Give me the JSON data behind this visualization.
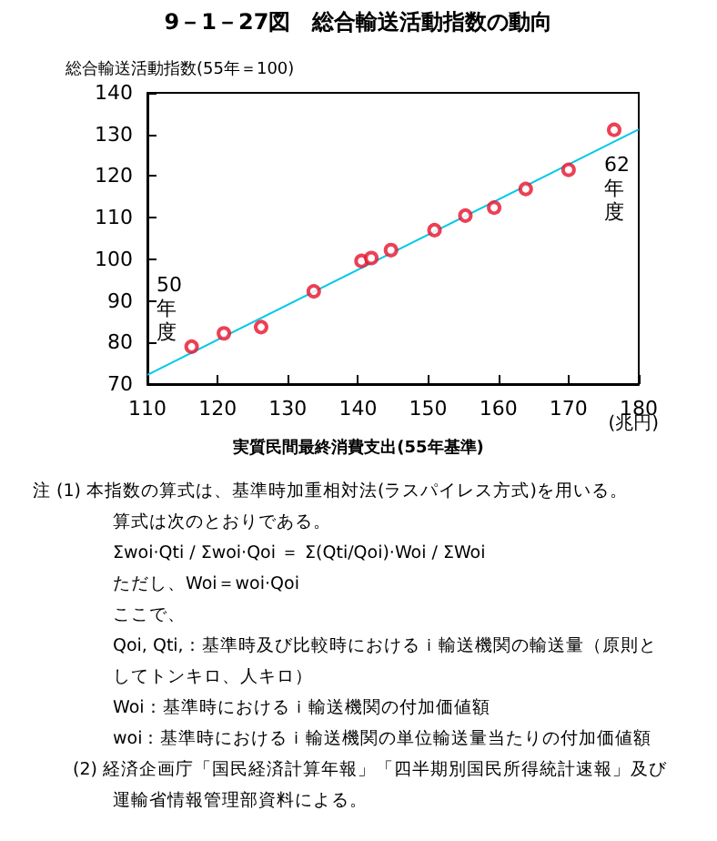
{
  "chart_data": {
    "type": "scatter",
    "title": "9－1－27図　総合輸送活動指数の動向",
    "xlabel": "実質民間最終消費支出(55年基準)",
    "ylabel": "総合輸送活動指数(55年＝100)",
    "x": [
      116.3,
      120.9,
      126.2,
      133.7,
      140.5,
      141.9,
      144.7,
      150.9,
      155.3,
      159.4,
      163.9,
      170.0,
      176.5
    ],
    "series": [
      {
        "color": "#e8102a",
        "marker": "circle",
        "values": [
          79.0,
          82.2,
          83.7,
          92.3,
          99.6,
          100.3,
          102.2,
          107.0,
          110.5,
          112.4,
          116.9,
          121.5,
          131.1
        ]
      },
      {
        "type": "line",
        "color": "#00c8e8",
        "marker": "none",
        "x": [
          110,
          180
        ],
        "values": [
          72.2,
          131.2
        ]
      }
    ],
    "xlim": [
      110,
      180
    ],
    "xticks": [
      110,
      120,
      130,
      140,
      150,
      160,
      170,
      180
    ],
    "ylim": [
      70,
      140
    ],
    "yticks": [
      70,
      80,
      90,
      100,
      110,
      120,
      130,
      140
    ],
    "grid": false,
    "annotations": [
      "(兆円)",
      "50年度",
      "62年度",
      "注 (1) 本指数の算式は、基準時加重相対法(ラスパイレス方式)を用いる。",
      "算式は次のとおりである。",
      "Σwoi·Qti / Σwoi·Qoi ＝ Σ(Qti/Qoi)·Woi / ΣWoi",
      "ただし、Woi＝woi·Qoi",
      "ここで、",
      "Qoi, Qti,：基準時及び比較時におけるｉ輸送機関の輸送量（原則と",
      "してトンキロ、人キロ）",
      "Woi：基準時におけるｉ輸送機関の付加価値額",
      "woi：基準時におけるｉ輸送機関の単位輸送量当たりの付加価値額",
      "(2) 経済企画庁「国民経済計算年報」「四半期別国民所得統計速報」及び",
      "運輸省情報管理部資料による。"
    ]
  }
}
